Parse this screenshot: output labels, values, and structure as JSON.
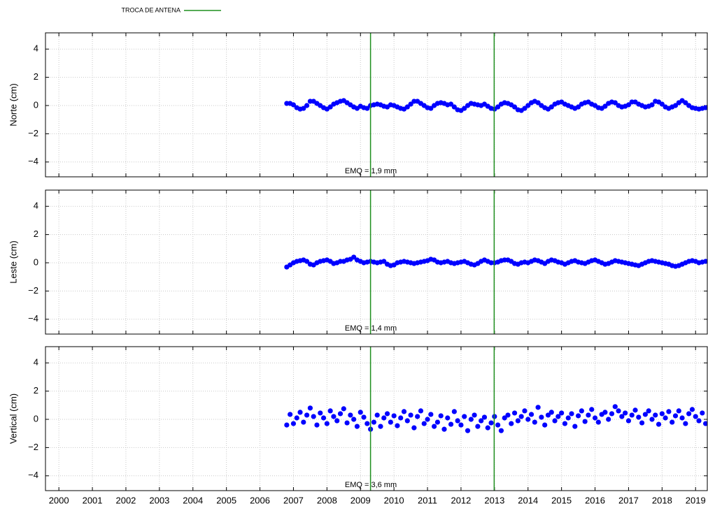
{
  "legend": {
    "label": "TROCA DE ANTENA",
    "color": "#1f8f1f"
  },
  "chart_data": [
    {
      "type": "scatter",
      "ylabel": "Norte (cm)",
      "annotation": "EMQ = 1,9 mm",
      "color": "#0000ff",
      "grid": true,
      "xlim": [
        1999.6,
        2019.35
      ],
      "ylim": [
        -5.05,
        5.15
      ],
      "xticks": [
        2000,
        2001,
        2002,
        2003,
        2004,
        2005,
        2006,
        2007,
        2008,
        2009,
        2010,
        2011,
        2012,
        2013,
        2014,
        2015,
        2016,
        2017,
        2018,
        2019
      ],
      "yticks": [
        {
          "value": -4,
          "label": "−4"
        },
        {
          "value": -2,
          "label": "−2"
        },
        0,
        2,
        4
      ],
      "vlines": [
        2009.3,
        2012.99
      ],
      "x": [
        2006.8,
        2006.9,
        2007.0,
        2007.1,
        2007.2,
        2007.3,
        2007.4,
        2007.5,
        2007.6,
        2007.7,
        2007.8,
        2007.9,
        2008.0,
        2008.1,
        2008.2,
        2008.3,
        2008.4,
        2008.5,
        2008.6,
        2008.7,
        2008.8,
        2008.9,
        2009.0,
        2009.1,
        2009.2,
        2009.3,
        2009.4,
        2009.5,
        2009.6,
        2009.7,
        2009.8,
        2009.9,
        2010.0,
        2010.1,
        2010.2,
        2010.3,
        2010.4,
        2010.5,
        2010.6,
        2010.7,
        2010.8,
        2010.9,
        2011.0,
        2011.1,
        2011.2,
        2011.3,
        2011.4,
        2011.5,
        2011.6,
        2011.7,
        2011.8,
        2011.9,
        2012.0,
        2012.1,
        2012.2,
        2012.3,
        2012.4,
        2012.5,
        2012.6,
        2012.7,
        2012.8,
        2012.9,
        2013.0,
        2013.1,
        2013.2,
        2013.3,
        2013.4,
        2013.5,
        2013.6,
        2013.7,
        2013.8,
        2013.9,
        2014.0,
        2014.1,
        2014.2,
        2014.3,
        2014.4,
        2014.5,
        2014.6,
        2014.7,
        2014.8,
        2014.9,
        2015.0,
        2015.1,
        2015.2,
        2015.3,
        2015.4,
        2015.5,
        2015.6,
        2015.7,
        2015.8,
        2015.9,
        2016.0,
        2016.1,
        2016.2,
        2016.3,
        2016.4,
        2016.5,
        2016.6,
        2016.7,
        2016.8,
        2016.9,
        2017.0,
        2017.1,
        2017.2,
        2017.3,
        2017.4,
        2017.5,
        2017.6,
        2017.7,
        2017.8,
        2017.9,
        2018.0,
        2018.1,
        2018.2,
        2018.3,
        2018.4,
        2018.5,
        2018.6,
        2018.7,
        2018.8,
        2018.9,
        2019.0,
        2019.1,
        2019.2,
        2019.3
      ],
      "values": [
        0.15,
        0.15,
        0.05,
        -0.15,
        -0.25,
        -0.2,
        0.0,
        0.3,
        0.3,
        0.15,
        0.0,
        -0.15,
        -0.25,
        -0.1,
        0.1,
        0.2,
        0.3,
        0.35,
        0.2,
        0.05,
        -0.1,
        -0.2,
        -0.05,
        -0.15,
        -0.2,
        0.0,
        0.05,
        0.1,
        0.05,
        -0.05,
        -0.1,
        0.05,
        0.0,
        -0.1,
        -0.2,
        -0.25,
        -0.1,
        0.1,
        0.3,
        0.3,
        0.15,
        0.0,
        -0.15,
        -0.2,
        0.0,
        0.15,
        0.2,
        0.15,
        0.05,
        0.1,
        -0.1,
        -0.3,
        -0.35,
        -0.2,
        0.0,
        0.15,
        0.1,
        0.05,
        0.0,
        0.1,
        -0.05,
        -0.2,
        -0.25,
        -0.1,
        0.1,
        0.2,
        0.15,
        0.05,
        -0.1,
        -0.3,
        -0.35,
        -0.2,
        0.0,
        0.2,
        0.3,
        0.2,
        0.0,
        -0.15,
        -0.25,
        -0.1,
        0.1,
        0.2,
        0.25,
        0.1,
        0.0,
        -0.1,
        -0.2,
        -0.1,
        0.1,
        0.2,
        0.25,
        0.1,
        0.0,
        -0.15,
        -0.2,
        -0.05,
        0.15,
        0.25,
        0.2,
        0.0,
        -0.1,
        -0.05,
        0.05,
        0.25,
        0.25,
        0.1,
        0.0,
        -0.1,
        -0.05,
        0.05,
        0.3,
        0.25,
        0.1,
        -0.1,
        -0.2,
        -0.1,
        0.0,
        0.2,
        0.35,
        0.2,
        0.0,
        -0.15,
        -0.2,
        -0.25,
        -0.2,
        -0.15
      ]
    },
    {
      "type": "scatter",
      "ylabel": "Leste (cm)",
      "annotation": "EMQ = 1,4 mm",
      "color": "#0000ff",
      "grid": true,
      "xlim": [
        1999.6,
        2019.35
      ],
      "ylim": [
        -5.05,
        5.15
      ],
      "xticks": [
        2000,
        2001,
        2002,
        2003,
        2004,
        2005,
        2006,
        2007,
        2008,
        2009,
        2010,
        2011,
        2012,
        2013,
        2014,
        2015,
        2016,
        2017,
        2018,
        2019
      ],
      "yticks": [
        {
          "value": -4,
          "label": "−4"
        },
        {
          "value": -2,
          "label": "−2"
        },
        0,
        2,
        4
      ],
      "vlines": [
        2009.3,
        2012.99
      ],
      "x": [
        2006.8,
        2006.9,
        2007.0,
        2007.1,
        2007.2,
        2007.3,
        2007.4,
        2007.5,
        2007.6,
        2007.7,
        2007.8,
        2007.9,
        2008.0,
        2008.1,
        2008.2,
        2008.3,
        2008.4,
        2008.5,
        2008.6,
        2008.7,
        2008.8,
        2008.9,
        2009.0,
        2009.1,
        2009.2,
        2009.3,
        2009.4,
        2009.5,
        2009.6,
        2009.7,
        2009.8,
        2009.9,
        2010.0,
        2010.1,
        2010.2,
        2010.3,
        2010.4,
        2010.5,
        2010.6,
        2010.7,
        2010.8,
        2010.9,
        2011.0,
        2011.1,
        2011.2,
        2011.3,
        2011.4,
        2011.5,
        2011.6,
        2011.7,
        2011.8,
        2011.9,
        2012.0,
        2012.1,
        2012.2,
        2012.3,
        2012.4,
        2012.5,
        2012.6,
        2012.7,
        2012.8,
        2012.9,
        2013.0,
        2013.1,
        2013.2,
        2013.3,
        2013.4,
        2013.5,
        2013.6,
        2013.7,
        2013.8,
        2013.9,
        2014.0,
        2014.1,
        2014.2,
        2014.3,
        2014.4,
        2014.5,
        2014.6,
        2014.7,
        2014.8,
        2014.9,
        2015.0,
        2015.1,
        2015.2,
        2015.3,
        2015.4,
        2015.5,
        2015.6,
        2015.7,
        2015.8,
        2015.9,
        2016.0,
        2016.1,
        2016.2,
        2016.3,
        2016.4,
        2016.5,
        2016.6,
        2016.7,
        2016.8,
        2016.9,
        2017.0,
        2017.1,
        2017.2,
        2017.3,
        2017.4,
        2017.5,
        2017.6,
        2017.7,
        2017.8,
        2017.9,
        2018.0,
        2018.1,
        2018.2,
        2018.3,
        2018.4,
        2018.5,
        2018.6,
        2018.7,
        2018.8,
        2018.9,
        2019.0,
        2019.1,
        2019.2,
        2019.3
      ],
      "values": [
        -0.3,
        -0.15,
        0.0,
        0.1,
        0.15,
        0.2,
        0.1,
        -0.1,
        -0.15,
        0.0,
        0.1,
        0.15,
        0.2,
        0.1,
        -0.05,
        0.0,
        0.1,
        0.1,
        0.2,
        0.25,
        0.4,
        0.2,
        0.1,
        0.0,
        0.05,
        0.1,
        0.05,
        0.0,
        0.05,
        0.1,
        -0.1,
        -0.2,
        -0.15,
        0.0,
        0.05,
        0.1,
        0.05,
        0.0,
        -0.05,
        0.0,
        0.05,
        0.1,
        0.15,
        0.25,
        0.2,
        0.05,
        0.0,
        0.05,
        0.1,
        0.0,
        -0.05,
        0.0,
        0.05,
        0.1,
        0.0,
        -0.1,
        -0.15,
        -0.05,
        0.1,
        0.2,
        0.1,
        0.0,
        0.0,
        0.05,
        0.15,
        0.2,
        0.2,
        0.1,
        -0.05,
        -0.1,
        0.0,
        0.05,
        0.0,
        0.1,
        0.2,
        0.15,
        0.05,
        -0.05,
        0.1,
        0.2,
        0.15,
        0.05,
        0.0,
        -0.1,
        0.0,
        0.1,
        0.15,
        0.05,
        0.0,
        -0.05,
        0.05,
        0.15,
        0.2,
        0.1,
        0.0,
        -0.1,
        -0.05,
        0.05,
        0.15,
        0.1,
        0.05,
        0.0,
        -0.05,
        -0.1,
        -0.15,
        -0.2,
        -0.1,
        0.0,
        0.1,
        0.15,
        0.1,
        0.05,
        0.0,
        -0.05,
        -0.1,
        -0.2,
        -0.25,
        -0.2,
        -0.1,
        0.0,
        0.1,
        0.15,
        0.1,
        0.0,
        0.05,
        0.1
      ]
    },
    {
      "type": "scatter",
      "ylabel": "Vertical (cm)",
      "annotation": "EMQ = 3,6 mm",
      "color": "#0000ff",
      "grid": true,
      "xlim": [
        1999.6,
        2019.35
      ],
      "ylim": [
        -5.05,
        5.15
      ],
      "xticks": [
        2000,
        2001,
        2002,
        2003,
        2004,
        2005,
        2006,
        2007,
        2008,
        2009,
        2010,
        2011,
        2012,
        2013,
        2014,
        2015,
        2016,
        2017,
        2018,
        2019
      ],
      "yticks": [
        {
          "value": -4,
          "label": "−4"
        },
        {
          "value": -2,
          "label": "−2"
        },
        0,
        2,
        4
      ],
      "vlines": [
        2009.3,
        2012.99
      ],
      "x": [
        2006.8,
        2006.9,
        2007.0,
        2007.1,
        2007.2,
        2007.3,
        2007.4,
        2007.5,
        2007.6,
        2007.7,
        2007.8,
        2007.9,
        2008.0,
        2008.1,
        2008.2,
        2008.3,
        2008.4,
        2008.5,
        2008.6,
        2008.7,
        2008.8,
        2008.9,
        2009.0,
        2009.1,
        2009.2,
        2009.3,
        2009.4,
        2009.5,
        2009.6,
        2009.7,
        2009.8,
        2009.9,
        2010.0,
        2010.1,
        2010.2,
        2010.3,
        2010.4,
        2010.5,
        2010.6,
        2010.7,
        2010.8,
        2010.9,
        2011.0,
        2011.1,
        2011.2,
        2011.3,
        2011.4,
        2011.5,
        2011.6,
        2011.7,
        2011.8,
        2011.9,
        2012.0,
        2012.1,
        2012.2,
        2012.3,
        2012.4,
        2012.5,
        2012.6,
        2012.7,
        2012.8,
        2012.9,
        2013.0,
        2013.1,
        2013.2,
        2013.3,
        2013.4,
        2013.5,
        2013.6,
        2013.7,
        2013.8,
        2013.9,
        2014.0,
        2014.1,
        2014.2,
        2014.3,
        2014.4,
        2014.5,
        2014.6,
        2014.7,
        2014.8,
        2014.9,
        2015.0,
        2015.1,
        2015.2,
        2015.3,
        2015.4,
        2015.5,
        2015.6,
        2015.7,
        2015.8,
        2015.9,
        2016.0,
        2016.1,
        2016.2,
        2016.3,
        2016.4,
        2016.5,
        2016.6,
        2016.7,
        2016.8,
        2016.9,
        2017.0,
        2017.1,
        2017.2,
        2017.3,
        2017.4,
        2017.5,
        2017.6,
        2017.7,
        2017.8,
        2017.9,
        2018.0,
        2018.1,
        2018.2,
        2018.3,
        2018.4,
        2018.5,
        2018.6,
        2018.7,
        2018.8,
        2018.9,
        2019.0,
        2019.1,
        2019.2,
        2019.3
      ],
      "values": [
        -0.4,
        0.35,
        -0.3,
        0.1,
        0.5,
        -0.2,
        0.3,
        0.8,
        0.2,
        -0.4,
        0.45,
        0.1,
        -0.3,
        0.6,
        0.2,
        -0.1,
        0.4,
        0.75,
        -0.25,
        0.3,
        0.0,
        -0.5,
        0.5,
        0.15,
        -0.3,
        -0.7,
        -0.2,
        0.3,
        -0.5,
        0.1,
        0.4,
        -0.2,
        0.25,
        -0.45,
        0.1,
        0.55,
        -0.1,
        0.3,
        -0.6,
        0.2,
        0.6,
        -0.3,
        0.0,
        0.35,
        -0.5,
        -0.2,
        0.25,
        -0.7,
        0.1,
        -0.35,
        0.55,
        -0.1,
        -0.4,
        0.2,
        -0.8,
        0.0,
        0.3,
        -0.5,
        -0.1,
        0.15,
        -0.6,
        -0.25,
        0.2,
        -0.4,
        -0.8,
        0.1,
        0.3,
        -0.3,
        0.45,
        -0.1,
        0.2,
        0.6,
        0.0,
        0.35,
        -0.2,
        0.85,
        0.15,
        -0.4,
        0.3,
        0.5,
        -0.1,
        0.2,
        0.45,
        -0.3,
        0.1,
        0.4,
        -0.5,
        0.25,
        0.6,
        -0.15,
        0.3,
        0.7,
        0.1,
        -0.2,
        0.35,
        0.5,
        0.0,
        0.4,
        0.9,
        0.6,
        0.2,
        0.45,
        -0.1,
        0.3,
        0.65,
        0.15,
        -0.25,
        0.35,
        0.6,
        0.0,
        0.3,
        -0.35,
        0.4,
        0.1,
        0.55,
        -0.2,
        0.25,
        0.6,
        0.1,
        -0.3,
        0.4,
        0.7,
        0.2,
        -0.1,
        0.45,
        -0.3
      ]
    }
  ]
}
